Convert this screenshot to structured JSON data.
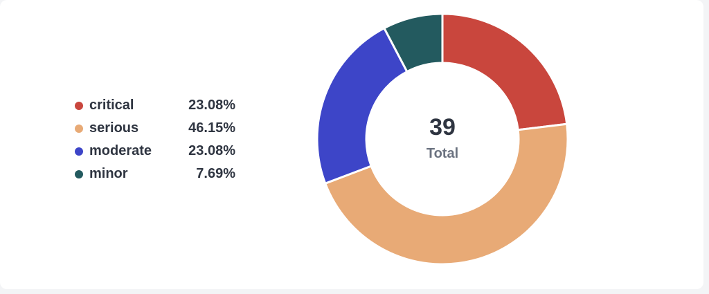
{
  "chart_data": {
    "type": "pie",
    "donut": true,
    "total": "39",
    "total_label": "Total",
    "categories": [
      "critical",
      "serious",
      "moderate",
      "minor"
    ],
    "values": [
      23.08,
      46.15,
      23.08,
      7.69
    ],
    "value_labels": [
      "23.08%",
      "46.15%",
      "23.08%",
      "7.69%"
    ],
    "colors": [
      "#c9463d",
      "#e8aa76",
      "#3d45c8",
      "#235a5f"
    ],
    "legend_placement": "left"
  }
}
